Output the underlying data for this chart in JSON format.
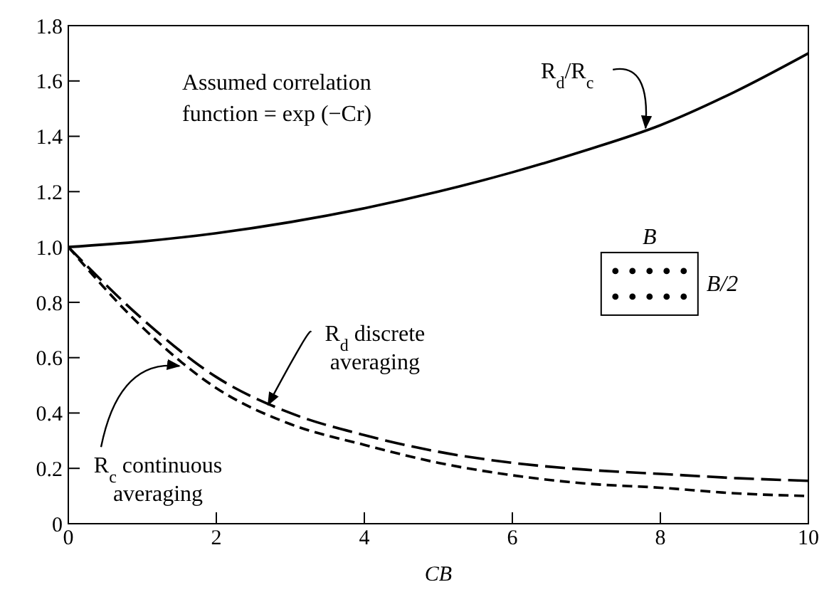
{
  "chart_data": {
    "type": "line",
    "x": [
      0,
      1,
      2,
      3,
      4,
      5,
      6,
      7,
      8,
      9,
      10
    ],
    "series": [
      {
        "color": "#000000",
        "line_style": "solid",
        "values": [
          1.0,
          1.02,
          1.05,
          1.09,
          1.14,
          1.2,
          1.27,
          1.35,
          1.44,
          1.56,
          1.7
        ]
      },
      {
        "color": "#000000",
        "line_style": "dashed",
        "values": [
          1.0,
          0.74,
          0.53,
          0.4,
          0.32,
          0.26,
          0.22,
          0.195,
          0.18,
          0.165,
          0.155
        ]
      },
      {
        "color": "#000000",
        "line_style": "dashed",
        "values": [
          1.0,
          0.71,
          0.49,
          0.36,
          0.285,
          0.22,
          0.175,
          0.145,
          0.13,
          0.11,
          0.1
        ]
      }
    ],
    "xlabel": "CB",
    "xlim": [
      0,
      10
    ],
    "xticks": [
      0,
      2,
      4,
      6,
      8,
      10
    ],
    "ylim": [
      0,
      1.8
    ],
    "yticks": [
      0,
      0.2,
      0.4,
      0.6,
      0.8,
      {
        "value": 1,
        "label": "1.0"
      },
      1.2,
      1.4,
      1.6,
      1.8
    ],
    "grid": false,
    "legend": false,
    "marker": "none",
    "annotations": [
      "Assumed correlation function = exp (−Cr)",
      {
        "text": "R$_{d}$/R$_{c}$",
        "x": 7.8,
        "y": 1.43
      },
      {
        "text": "R$_{d}$ discrete averaging",
        "x": 2.7,
        "y": 0.43
      },
      {
        "text": "R$_{c}$ continuous averaging",
        "x": 1.5,
        "y": 0.57
      },
      "B",
      "B/2"
    ]
  }
}
